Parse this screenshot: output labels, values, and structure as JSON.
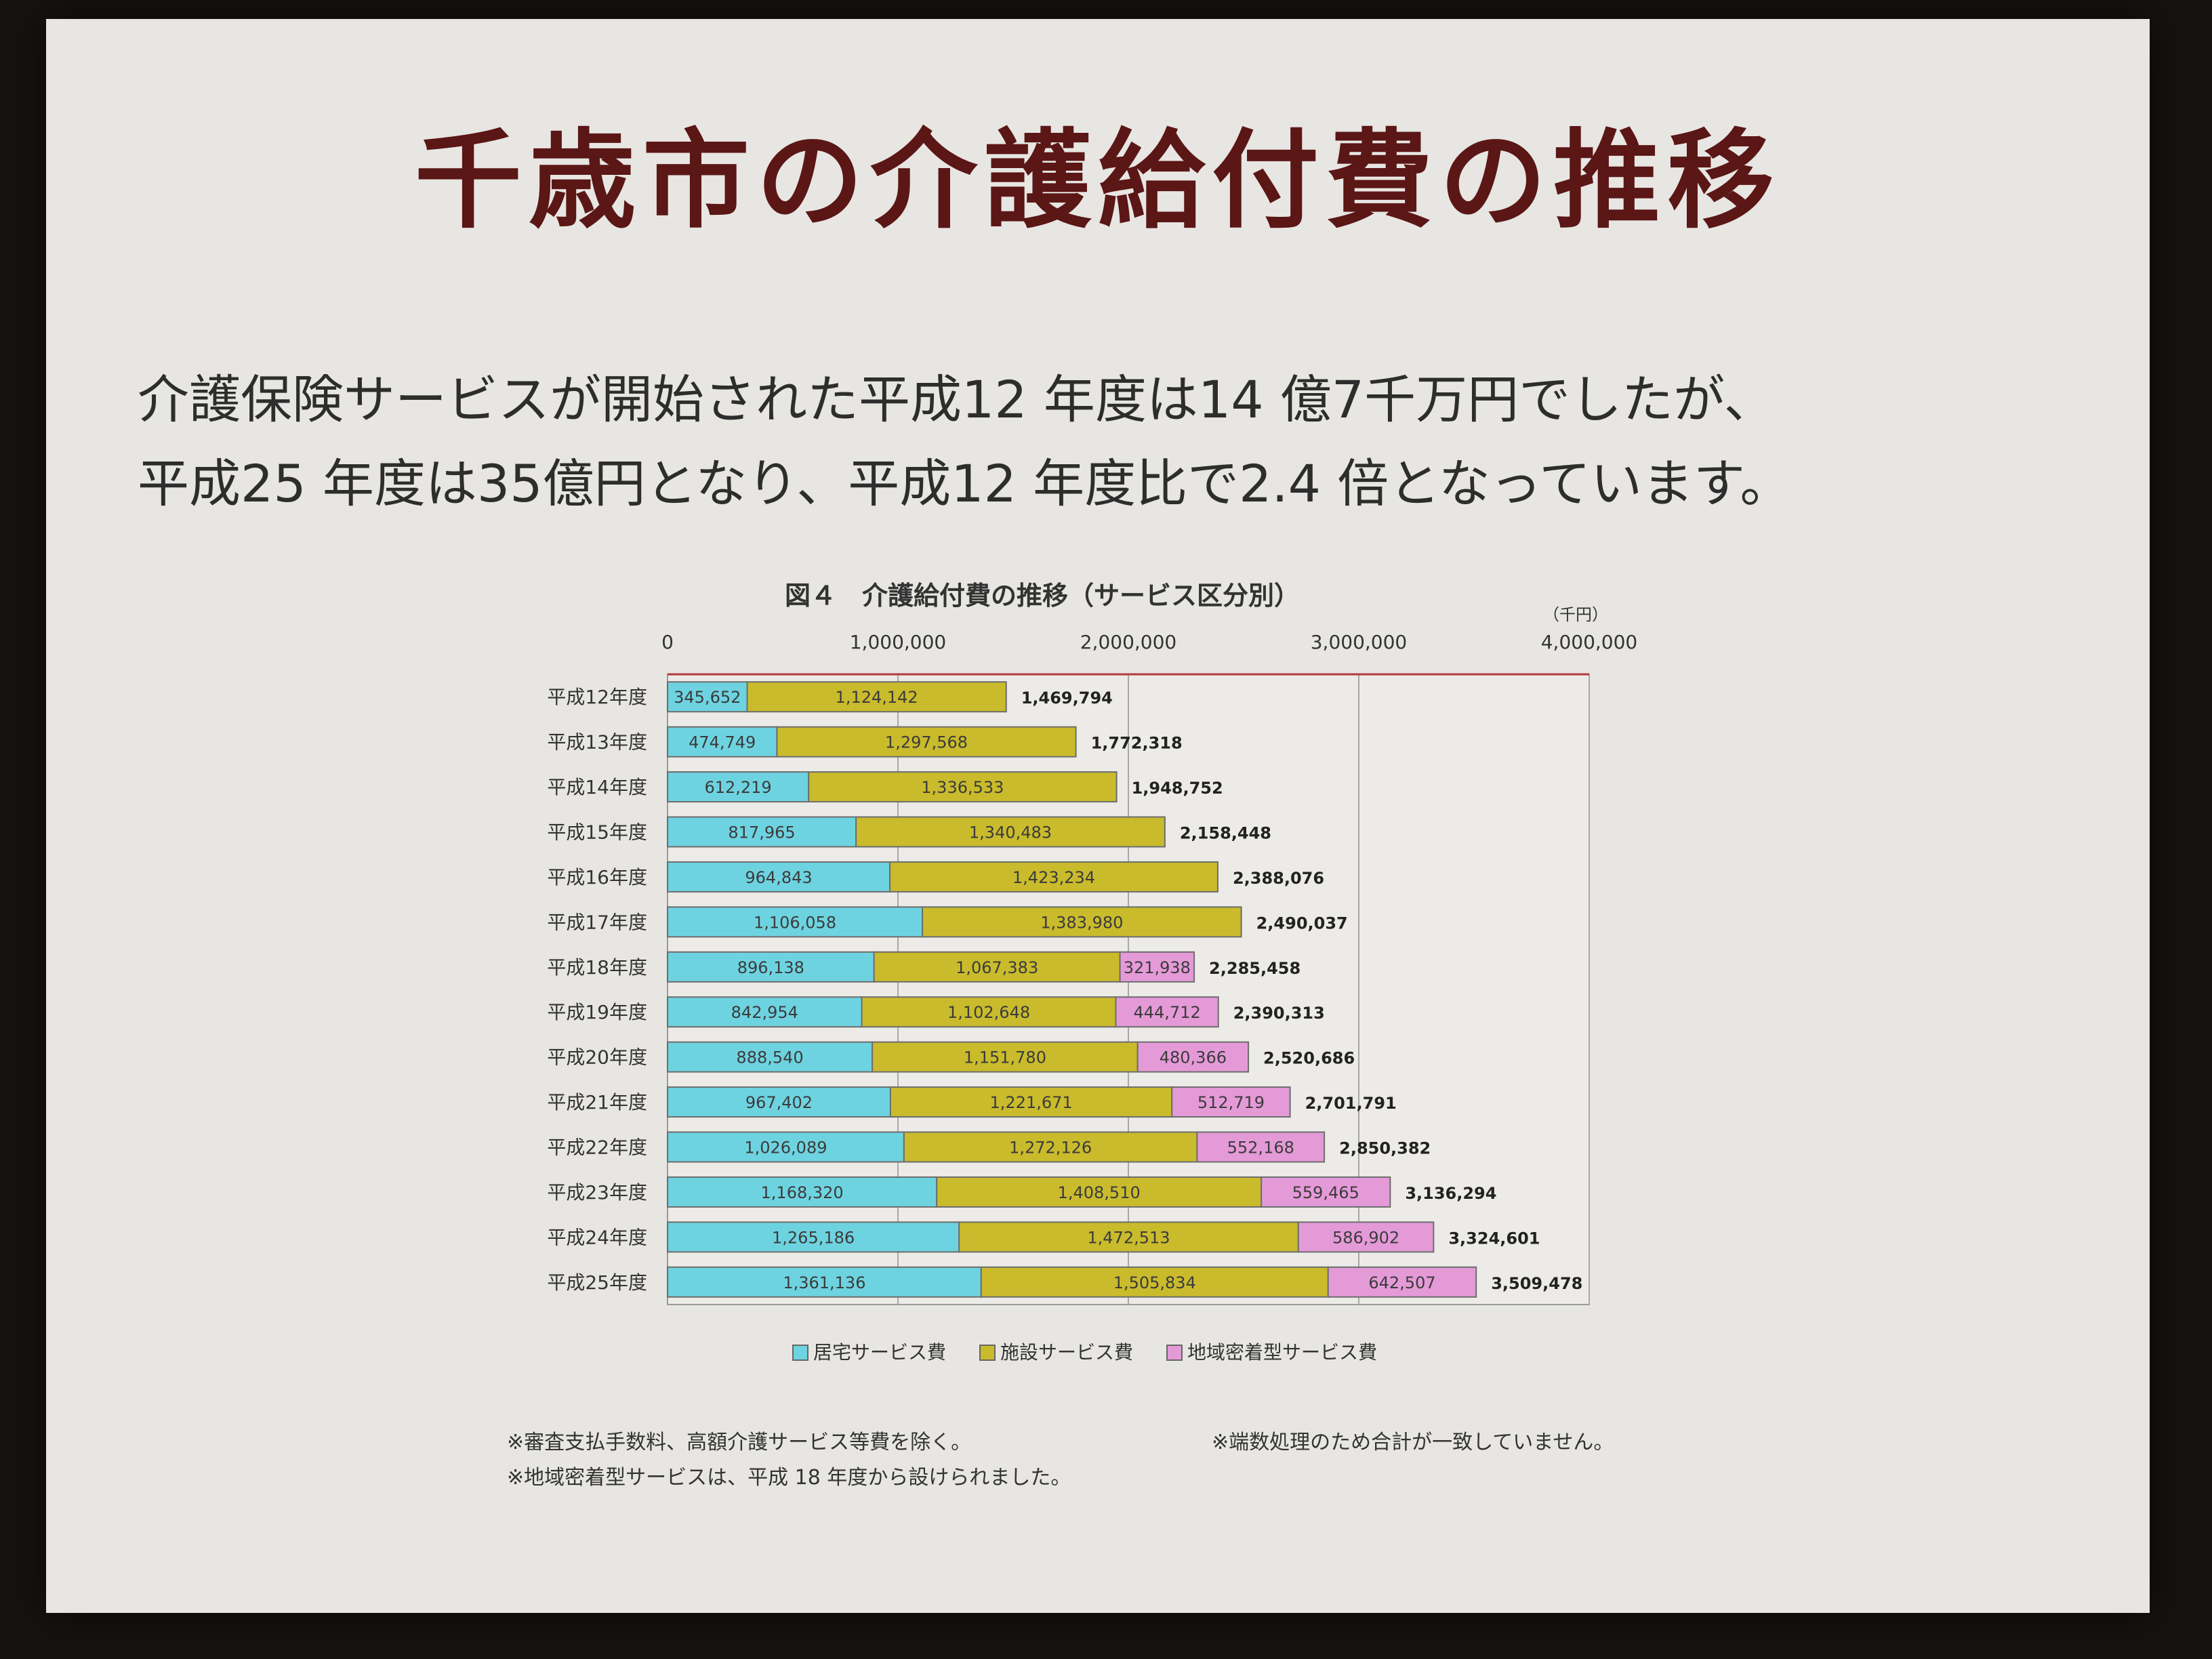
{
  "slide": {
    "title": "千歳市の介護給付費の推移",
    "subtitle_line1": "介護保険サービスが開始された平成12 年度は14 億7千万円でしたが、",
    "subtitle_line2": "平成25 年度は35億円となり、平成12 年度比で2.4 倍となっています。"
  },
  "notes": {
    "note1": "※審査支払手数料、高額介護サービス等費を除く。",
    "note2": "※端数処理のため合計が一致していません。",
    "note3": "※地域密着型サービスは、平成 18 年度から設けられました。"
  },
  "chart_data": {
    "type": "bar",
    "orientation": "horizontal",
    "stacked": true,
    "title": "図４　介護給付費の推移（サービス区分別）",
    "unit": "（千円）",
    "xlim": [
      0,
      4000000
    ],
    "x_ticks": [
      "0",
      "1,000,000",
      "2,000,000",
      "3,000,000",
      "4,000,000"
    ],
    "x_tick_values": [
      0,
      1000000,
      2000000,
      3000000,
      4000000
    ],
    "grid": true,
    "legend_position": "bottom",
    "categories": [
      "平成12年度",
      "平成13年度",
      "平成14年度",
      "平成15年度",
      "平成16年度",
      "平成17年度",
      "平成18年度",
      "平成19年度",
      "平成20年度",
      "平成21年度",
      "平成22年度",
      "平成23年度",
      "平成24年度",
      "平成25年度"
    ],
    "series": [
      {
        "name": "居宅サービス費",
        "color": "#6ed3e0",
        "values": [
          345652,
          474749,
          612219,
          817965,
          964843,
          1106058,
          896138,
          842954,
          888540,
          967402,
          1026089,
          1168320,
          1265186,
          1361136
        ],
        "labels": [
          "345,652",
          "474,749",
          "612,219",
          "817,965",
          "964,843",
          "1,106,058",
          "896,138",
          "842,954",
          "888,540",
          "967,402",
          "1,026,089",
          "1,168,320",
          "1,265,186",
          "1,361,136"
        ]
      },
      {
        "name": "施設サービス費",
        "color": "#c9bb2c",
        "values": [
          1124142,
          1297568,
          1336533,
          1340483,
          1423234,
          1383980,
          1067383,
          1102648,
          1151780,
          1221671,
          1272126,
          1408510,
          1472513,
          1505834
        ],
        "labels": [
          "1,124,142",
          "1,297,568",
          "1,336,533",
          "1,340,483",
          "1,423,234",
          "1,383,980",
          "1,067,383",
          "1,102,648",
          "1,151,780",
          "1,221,671",
          "1,272,126",
          "1,408,510",
          "1,472,513",
          "1,505,834"
        ]
      },
      {
        "name": "地域密着型サービス費",
        "color": "#e59ad8",
        "values": [
          0,
          0,
          0,
          0,
          0,
          0,
          321938,
          444712,
          480366,
          512719,
          552168,
          559465,
          586902,
          642507
        ],
        "labels": [
          "",
          "",
          "",
          "",
          "",
          "",
          "321,938",
          "444,712",
          "480,366",
          "512,719",
          "552,168",
          "559,465",
          "586,902",
          "642,507"
        ]
      }
    ],
    "totals": [
      1469794,
      1772318,
      1948752,
      2158448,
      2388076,
      2490037,
      2285458,
      2390313,
      2520686,
      2701791,
      2850382,
      3136294,
      3324601,
      3509478
    ],
    "total_labels": [
      "1,469,794",
      "1,772,318",
      "1,948,752",
      "2,158,448",
      "2,388,076",
      "2,490,037",
      "2,285,458",
      "2,390,313",
      "2,520,686",
      "2,701,791",
      "2,850,382",
      "3,136,294",
      "3,324,601",
      "3,509,478"
    ]
  },
  "colors": {
    "title": "#5b1616",
    "background": "#e7e6e2",
    "axis": "#b03a3a"
  }
}
